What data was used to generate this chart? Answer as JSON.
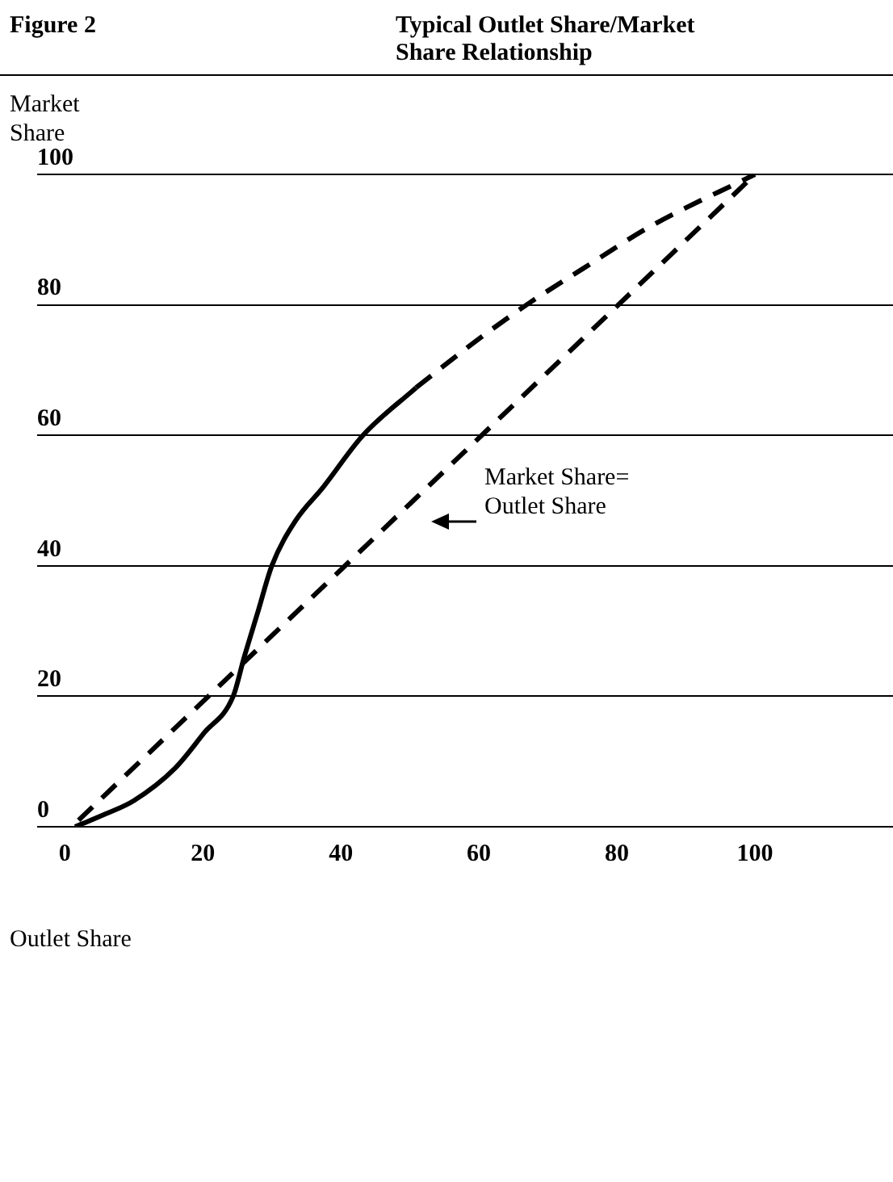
{
  "chart_data": {
    "type": "line",
    "title": "Typical Outlet Share/Market Share Relationship",
    "xlabel": "Outlet Share",
    "ylabel": "Market Share",
    "annotations": [
      "Figure 2",
      "Market Share= Outlet Share"
    ],
    "xlim": [
      -4,
      120
    ],
    "ylim": [
      0,
      100
    ],
    "xticks": [
      0,
      20,
      40,
      60,
      80,
      100
    ],
    "yticks": [
      0,
      20,
      40,
      60,
      80,
      100
    ],
    "grid": "y",
    "marker": "none",
    "series": [
      {
        "color": "#000000",
        "line_style": "solid",
        "x": [
          1.5,
          6,
          10,
          16,
          20.2,
          24.4,
          26,
          28,
          30,
          33.5,
          37.4,
          43.2,
          50.9
        ],
        "values": [
          0,
          2,
          4,
          9,
          14.4,
          20,
          26,
          33,
          40,
          47,
          52,
          60,
          67.3
        ]
      },
      {
        "color": "#000000",
        "line_style": "dashed",
        "x": [
          50.9,
          59,
          66.9,
          75,
          84.8,
          100
        ],
        "values": [
          67.3,
          74,
          80,
          85.5,
          92,
          100
        ]
      },
      {
        "color": "#000000",
        "line_style": "dashed",
        "x": [
          2,
          100
        ],
        "values": [
          1,
          100
        ]
      }
    ]
  }
}
